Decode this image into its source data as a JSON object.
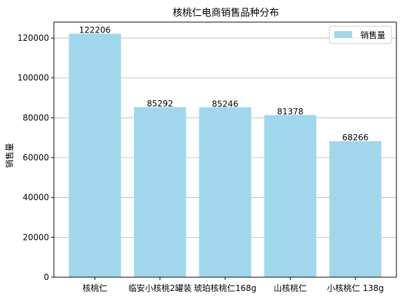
{
  "chart_data": {
    "type": "bar",
    "title": "核桃仁电商销售品种分布",
    "xlabel": "",
    "ylabel": "销售量",
    "categories": [
      "核桃仁",
      "临安小核桃2罐装",
      "琥珀核桃仁168g",
      "山核桃仁",
      "小核桃仁 138g"
    ],
    "series": [
      {
        "name": "销售量",
        "values": [
          122206,
          85292,
          85246,
          81378,
          68266
        ]
      }
    ],
    "ylim": [
      0,
      128000
    ],
    "yticks": [
      0,
      20000,
      40000,
      60000,
      80000,
      100000,
      120000
    ],
    "ytick_labels": [
      "0",
      "20000",
      "40000",
      "60000",
      "80000",
      "100000",
      "120000"
    ],
    "grid": "y",
    "legend_position": "top-right",
    "bar_color": "#a1d7ed"
  }
}
